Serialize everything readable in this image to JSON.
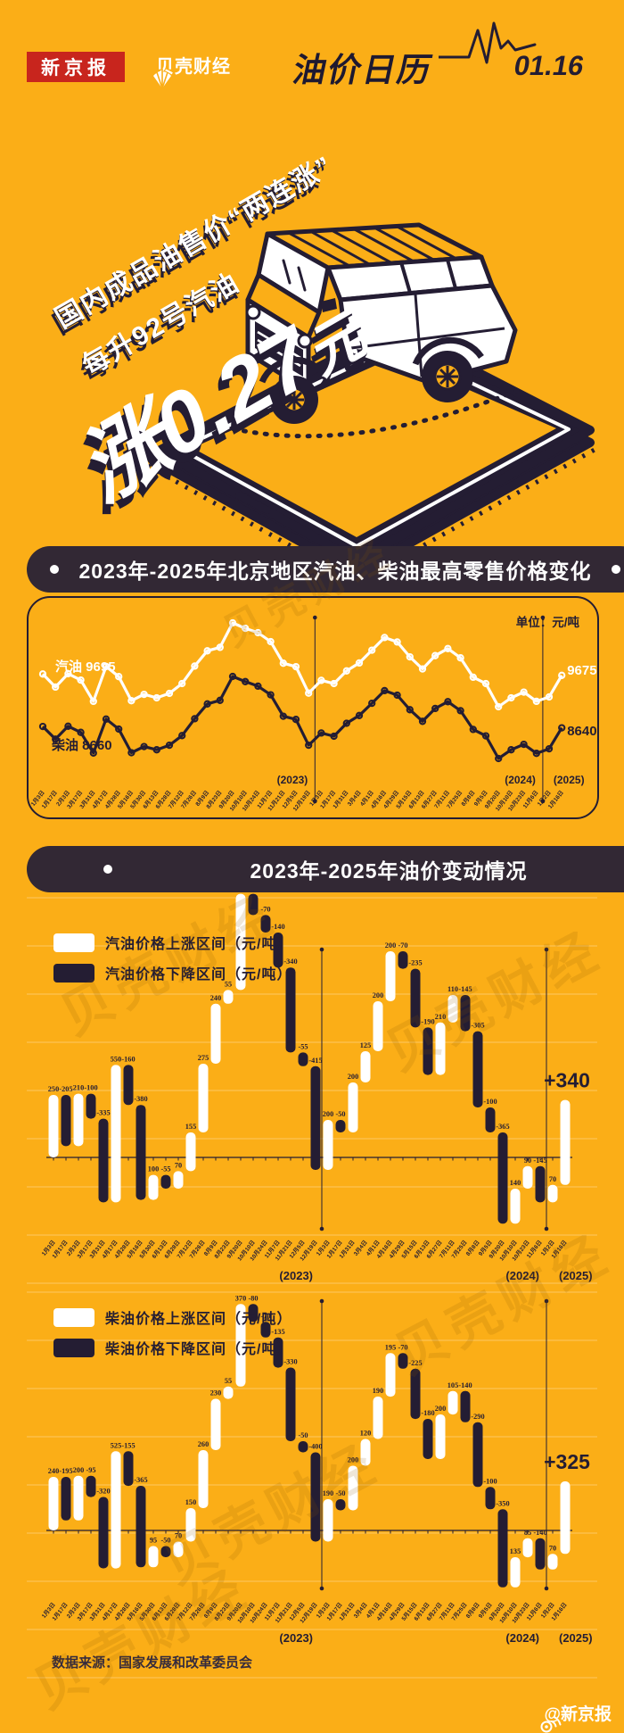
{
  "page": {
    "bg": "#FBAE17",
    "dark": "#241D33",
    "red": "#C8251D",
    "white": "#FFFFFF",
    "banner_bg": "#322834"
  },
  "header": {
    "brand": "新京报",
    "brand2": "贝壳财经",
    "title": "油价日历",
    "date": "01.16"
  },
  "hero": {
    "line1": "国内成品油售价“两连涨”",
    "line2": "每升92号汽油",
    "line3_main": "涨0.27",
    "line3_unit": "元"
  },
  "banners": {
    "price_title": "2023年-2025年北京地区汽油、柴油最高零售价格变化",
    "change_title": "2023年-2025年油价变动情况"
  },
  "watermark": {
    "text": "贝壳财经"
  },
  "footer": {
    "source": "数据来源：国家发展和改革委员会",
    "credit": "@新京报"
  },
  "chart_data": [
    {
      "type": "line",
      "title": "2023年-2025年北京地区汽油、柴油最高零售价格变化",
      "unit": "单位：元/吨",
      "categories": [
        "1月3日",
        "1月17日",
        "2月3日",
        "3月17日",
        "3月31日",
        "4月17日",
        "4月28日",
        "5月16日",
        "5月30日",
        "6月13日",
        "6月28日",
        "7月12日",
        "7月26日",
        "8月9日",
        "8月23日",
        "9月20日",
        "10月10日",
        "10月24日",
        "11月7日",
        "11月21日",
        "12月5日",
        "12月19日",
        "1月3日",
        "1月17日",
        "1月31日",
        "3月4日",
        "4月1日",
        "4月16日",
        "4月29日",
        "5月15日",
        "6月13日",
        "6月27日",
        "7月11日",
        "7月25日",
        "8月8日",
        "9月5日",
        "9月20日",
        "10月10日",
        "10月23日",
        "11月6日",
        "1月2日",
        "1月16日"
      ],
      "series": [
        {
          "name": "汽油",
          "start_label": "9695",
          "end_label": "9675",
          "values": [
            9695,
            9490,
            9700,
            9600,
            9265,
            9815,
            9655,
            9275,
            9375,
            9320,
            9390,
            9545,
            9820,
            10060,
            10115,
            10500,
            10415,
            10345,
            10205,
            9865,
            9810,
            9395,
            9595,
            9545,
            9745,
            9870,
            10070,
            10270,
            10200,
            9965,
            9775,
            9985,
            10095,
            9950,
            9645,
            9545,
            9180,
            9320,
            9410,
            9265,
            9335,
            9675
          ]
        },
        {
          "name": "柴油",
          "start_label": "8660",
          "end_label": "8640",
          "values": [
            8660,
            8465,
            8665,
            8570,
            8250,
            8775,
            8620,
            8255,
            8350,
            8300,
            8370,
            8520,
            8780,
            9010,
            9065,
            9435,
            9355,
            9285,
            9150,
            8820,
            8770,
            8370,
            8560,
            8510,
            8710,
            8830,
            9020,
            9215,
            9145,
            8920,
            8740,
            8940,
            9045,
            8905,
            8615,
            8515,
            8165,
            8300,
            8385,
            8245,
            8315,
            8640
          ]
        }
      ],
      "year_labels": [
        "(2023)",
        "(2024)",
        "(2025)"
      ],
      "year_divider_after": [
        21,
        39
      ]
    },
    {
      "type": "bar",
      "subtype": "waterfall",
      "name": "汽油价格变动（元/吨）",
      "legend": [
        "汽油价格上涨区间（元/吨）",
        "汽油价格下降区间（元/吨）"
      ],
      "up_color": "#FFFFFF",
      "down_color": "#241D33",
      "categories": [
        "1月3日",
        "1月17日",
        "2月3日",
        "3月17日",
        "3月31日",
        "4月17日",
        "4月28日",
        "5月16日",
        "5月30日",
        "6月13日",
        "6月28日",
        "7月12日",
        "7月26日",
        "8月9日",
        "8月23日",
        "9月20日",
        "10月10日",
        "10月24日",
        "11月7日",
        "11月21日",
        "12月5日",
        "12月19日",
        "1月3日",
        "1月17日",
        "1月31日",
        "3月4日",
        "4月1日",
        "4月16日",
        "4月29日",
        "5月15日",
        "6月13日",
        "6月27日",
        "7月11日",
        "7月25日",
        "8月8日",
        "9月5日",
        "9月20日",
        "10月10日",
        "10月23日",
        "11月6日",
        "1月2日",
        "1月16日"
      ],
      "values": [
        250,
        -205,
        210,
        -100,
        -335,
        550,
        -160,
        -380,
        100,
        -55,
        70,
        155,
        275,
        240,
        55,
        385,
        -85,
        -70,
        -140,
        -340,
        -55,
        -415,
        200,
        -50,
        200,
        125,
        200,
        200,
        -70,
        -235,
        -190,
        210,
        110,
        -145,
        -305,
        -100,
        -365,
        140,
        90,
        -145,
        70,
        340
      ],
      "final_label": "+340",
      "year_labels": [
        "(2023)",
        "(2024)",
        "(2025)"
      ],
      "year_divider_after": [
        21,
        39
      ]
    },
    {
      "type": "bar",
      "subtype": "waterfall",
      "name": "柴油价格变动（元/吨）",
      "legend": [
        "柴油价格上涨区间（元/吨）",
        "柴油价格下降区间（元/吨）"
      ],
      "up_color": "#FFFFFF",
      "down_color": "#241D33",
      "categories": [
        "1月3日",
        "1月17日",
        "2月3日",
        "3月17日",
        "3月31日",
        "4月17日",
        "4月28日",
        "5月16日",
        "5月30日",
        "6月13日",
        "6月28日",
        "7月12日",
        "7月26日",
        "8月9日",
        "8月23日",
        "9月20日",
        "10月10日",
        "10月24日",
        "11月7日",
        "11月21日",
        "12月5日",
        "12月19日",
        "1月3日",
        "1月17日",
        "1月31日",
        "3月4日",
        "4月1日",
        "4月16日",
        "4月29日",
        "5月15日",
        "6月13日",
        "6月27日",
        "7月11日",
        "7月25日",
        "8月8日",
        "9月5日",
        "9月20日",
        "10月10日",
        "10月23日",
        "11月6日",
        "1月2日",
        "1月16日"
      ],
      "values": [
        240,
        -195,
        200,
        -95,
        -320,
        525,
        -155,
        -365,
        95,
        -50,
        70,
        150,
        260,
        230,
        55,
        370,
        -80,
        -70,
        -135,
        -330,
        -50,
        -400,
        190,
        -50,
        200,
        120,
        190,
        195,
        -70,
        -225,
        -180,
        200,
        105,
        -140,
        -290,
        -100,
        -350,
        135,
        85,
        -140,
        70,
        325
      ],
      "final_label": "+325",
      "year_labels": [
        "(2023)",
        "(2024)",
        "(2025)"
      ],
      "year_divider_after": [
        21,
        39
      ]
    }
  ]
}
